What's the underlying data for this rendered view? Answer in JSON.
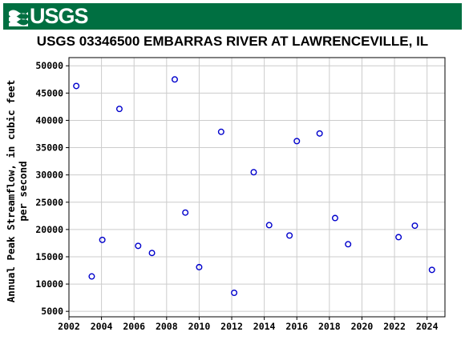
{
  "header": {
    "logo_text": "USGS",
    "logo_icon": "usgs-wave-icon",
    "brand_color": "#006f41"
  },
  "chart_data": {
    "type": "scatter",
    "title": "USGS 03346500 EMBARRAS RIVER AT LAWRENCEVILLE, IL",
    "ylabel_line1": "Annual Peak Streamflow, in cubic feet",
    "ylabel_line2": "per second",
    "xlabel": "",
    "xlim": [
      2002,
      2025.1
    ],
    "ylim": [
      4000,
      51500
    ],
    "xticks": [
      2002,
      2004,
      2006,
      2008,
      2010,
      2012,
      2014,
      2016,
      2018,
      2020,
      2022,
      2024
    ],
    "yticks": [
      5000,
      10000,
      15000,
      20000,
      25000,
      30000,
      35000,
      40000,
      45000,
      50000
    ],
    "grid": true,
    "marker_color": "#0000cc",
    "points": [
      {
        "x": 2002.45,
        "y": 46300
      },
      {
        "x": 2003.4,
        "y": 11400
      },
      {
        "x": 2004.05,
        "y": 18100
      },
      {
        "x": 2005.1,
        "y": 42100
      },
      {
        "x": 2006.25,
        "y": 17000
      },
      {
        "x": 2007.1,
        "y": 15700
      },
      {
        "x": 2008.5,
        "y": 47500
      },
      {
        "x": 2009.15,
        "y": 23100
      },
      {
        "x": 2010.0,
        "y": 13100
      },
      {
        "x": 2011.35,
        "y": 37900
      },
      {
        "x": 2012.15,
        "y": 8400
      },
      {
        "x": 2013.35,
        "y": 30500
      },
      {
        "x": 2014.3,
        "y": 20800
      },
      {
        "x": 2015.55,
        "y": 18900
      },
      {
        "x": 2016.0,
        "y": 36200
      },
      {
        "x": 2017.4,
        "y": 37600
      },
      {
        "x": 2018.35,
        "y": 22100
      },
      {
        "x": 2019.15,
        "y": 17300
      },
      {
        "x": 2022.25,
        "y": 18600
      },
      {
        "x": 2023.25,
        "y": 20700
      },
      {
        "x": 2024.3,
        "y": 12600
      }
    ]
  }
}
